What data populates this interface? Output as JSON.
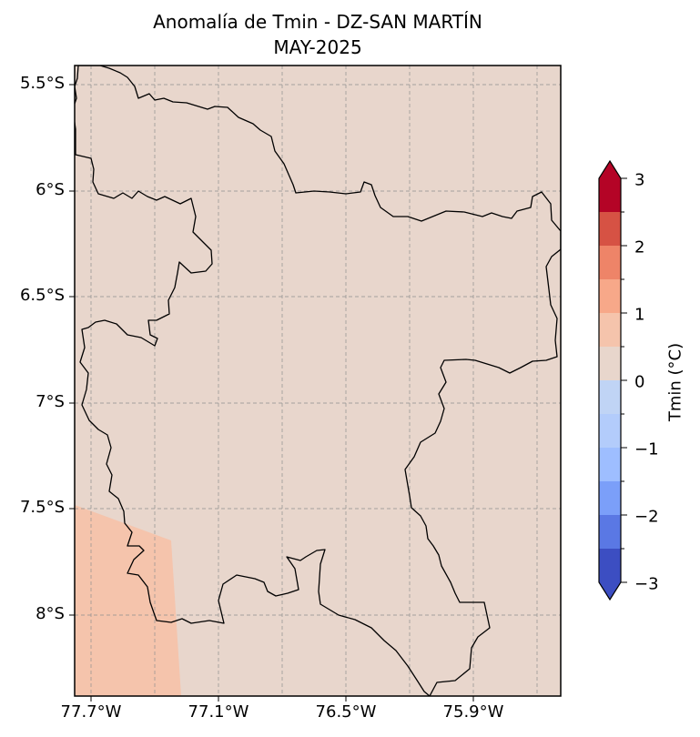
{
  "chart_data": {
    "type": "map",
    "title": "Anomalía de Tmin - DZ-SAN MARTÍN",
    "subtitle": "MAY-2025",
    "y_tick_labels": [
      "5.5°S",
      "6°S",
      "6.5°S",
      "7°S",
      "7.5°S",
      "8°S"
    ],
    "x_tick_labels": [
      "77.7°W",
      "77.1°W",
      "76.5°W",
      "75.9°W"
    ],
    "grid": true,
    "colorbar": {
      "label": "Tmin (°C)",
      "range": [
        -3,
        3
      ],
      "step": 0.5,
      "extend": "both",
      "tick_labels": [
        "3",
        "2",
        "1",
        "0",
        "−1",
        "−2",
        "−3"
      ],
      "colors_low_to_high": [
        "#3c4ec2",
        "#5a78e4",
        "#7b9ff9",
        "#9ebeff",
        "#c0d4f5",
        "#dddcdc",
        "#e8d6cc",
        "#f5c4ac",
        "#f7a889",
        "#ee8468",
        "#d65244",
        "#b40426"
      ]
    },
    "fill": {
      "dominant_anomaly_range": [
        0,
        0.5
      ],
      "dominant_color": "#e8d6cc",
      "southwest_anomaly_range": [
        0.5,
        1.0
      ],
      "southwest_color": "#f5c4ac"
    },
    "border_color": "#000000"
  }
}
